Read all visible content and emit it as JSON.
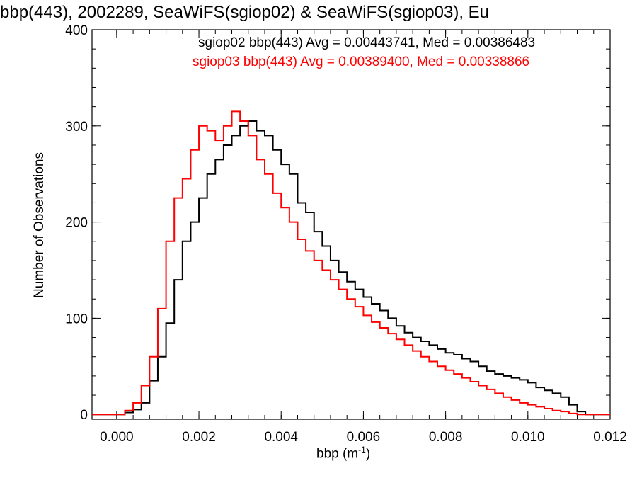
{
  "chart_data": {
    "type": "histogram",
    "title": "bbp(443), 2002289, SeaWiFS(sgiop02) & SeaWiFS(sgiop03), Eu",
    "xlabel": "bbp (m",
    "xlabel_sup": "-1",
    "xlabel_close": ")",
    "ylabel": "Number of Observations",
    "xlim": [
      -0.0006,
      0.012
    ],
    "ylim": [
      -5,
      400
    ],
    "x_ticks": [
      0.0,
      0.002,
      0.004,
      0.006,
      0.008,
      0.01,
      0.012
    ],
    "x_tick_labels": [
      "0.000",
      "0.002",
      "0.004",
      "0.006",
      "0.008",
      "0.010",
      "0.012"
    ],
    "y_ticks": [
      0,
      100,
      200,
      300,
      400
    ],
    "y_tick_labels": [
      "0",
      "100",
      "200",
      "300",
      "400"
    ],
    "series": [
      {
        "name": "sgiop02",
        "color": "#000000",
        "legend": "sgiop02 bbp(443) Avg = 0.00443741, Med = 0.00386483",
        "points": [
          [
            0.0,
            0
          ],
          [
            0.0002,
            2
          ],
          [
            0.0004,
            5
          ],
          [
            0.0006,
            12
          ],
          [
            0.0008,
            35
          ],
          [
            0.001,
            60
          ],
          [
            0.0012,
            95
          ],
          [
            0.0014,
            140
          ],
          [
            0.0016,
            180
          ],
          [
            0.0018,
            200
          ],
          [
            0.002,
            225
          ],
          [
            0.0022,
            250
          ],
          [
            0.0024,
            265
          ],
          [
            0.0026,
            280
          ],
          [
            0.0028,
            290
          ],
          [
            0.003,
            300
          ],
          [
            0.0032,
            305
          ],
          [
            0.0034,
            295
          ],
          [
            0.0036,
            290
          ],
          [
            0.0038,
            275
          ],
          [
            0.004,
            260
          ],
          [
            0.0042,
            250
          ],
          [
            0.0044,
            220
          ],
          [
            0.0046,
            210
          ],
          [
            0.0048,
            190
          ],
          [
            0.005,
            175
          ],
          [
            0.0052,
            160
          ],
          [
            0.0054,
            148
          ],
          [
            0.0056,
            138
          ],
          [
            0.0058,
            130
          ],
          [
            0.006,
            122
          ],
          [
            0.0062,
            115
          ],
          [
            0.0064,
            108
          ],
          [
            0.0066,
            100
          ],
          [
            0.0068,
            92
          ],
          [
            0.007,
            85
          ],
          [
            0.0072,
            80
          ],
          [
            0.0074,
            76
          ],
          [
            0.0076,
            72
          ],
          [
            0.0078,
            68
          ],
          [
            0.008,
            64
          ],
          [
            0.0082,
            62
          ],
          [
            0.0084,
            58
          ],
          [
            0.0086,
            55
          ],
          [
            0.0088,
            50
          ],
          [
            0.009,
            45
          ],
          [
            0.0092,
            42
          ],
          [
            0.0094,
            40
          ],
          [
            0.0096,
            38
          ],
          [
            0.0098,
            36
          ],
          [
            0.01,
            33
          ],
          [
            0.0102,
            28
          ],
          [
            0.0104,
            25
          ],
          [
            0.0106,
            22
          ],
          [
            0.0108,
            18
          ],
          [
            0.011,
            10
          ],
          [
            0.0112,
            3
          ],
          [
            0.0114,
            0
          ]
        ]
      },
      {
        "name": "sgiop03",
        "color": "#ff0000",
        "legend": "sgiop03 bbp(443) Avg = 0.00389400, Med = 0.00338866",
        "points": [
          [
            0.0,
            0
          ],
          [
            0.0002,
            4
          ],
          [
            0.0004,
            12
          ],
          [
            0.0006,
            30
          ],
          [
            0.0008,
            60
          ],
          [
            0.001,
            110
          ],
          [
            0.0012,
            180
          ],
          [
            0.0014,
            225
          ],
          [
            0.0016,
            245
          ],
          [
            0.0018,
            275
          ],
          [
            0.002,
            300
          ],
          [
            0.0022,
            295
          ],
          [
            0.0024,
            285
          ],
          [
            0.0026,
            300
          ],
          [
            0.0028,
            315
          ],
          [
            0.003,
            305
          ],
          [
            0.0032,
            290
          ],
          [
            0.0034,
            265
          ],
          [
            0.0036,
            250
          ],
          [
            0.0038,
            230
          ],
          [
            0.004,
            215
          ],
          [
            0.0042,
            200
          ],
          [
            0.0044,
            182
          ],
          [
            0.0046,
            170
          ],
          [
            0.0048,
            160
          ],
          [
            0.005,
            150
          ],
          [
            0.0052,
            140
          ],
          [
            0.0054,
            130
          ],
          [
            0.0056,
            120
          ],
          [
            0.0058,
            112
          ],
          [
            0.006,
            103
          ],
          [
            0.0062,
            96
          ],
          [
            0.0064,
            90
          ],
          [
            0.0066,
            84
          ],
          [
            0.0068,
            78
          ],
          [
            0.007,
            72
          ],
          [
            0.0072,
            66
          ],
          [
            0.0074,
            60
          ],
          [
            0.0076,
            55
          ],
          [
            0.0078,
            50
          ],
          [
            0.008,
            46
          ],
          [
            0.0082,
            42
          ],
          [
            0.0084,
            38
          ],
          [
            0.0086,
            34
          ],
          [
            0.0088,
            30
          ],
          [
            0.009,
            26
          ],
          [
            0.0092,
            22
          ],
          [
            0.0094,
            18
          ],
          [
            0.0096,
            15
          ],
          [
            0.0098,
            12
          ],
          [
            0.01,
            10
          ],
          [
            0.0102,
            8
          ],
          [
            0.0104,
            6
          ],
          [
            0.0106,
            4
          ],
          [
            0.0108,
            3
          ],
          [
            0.011,
            1
          ],
          [
            0.0112,
            0
          ]
        ]
      }
    ],
    "grid": false
  }
}
